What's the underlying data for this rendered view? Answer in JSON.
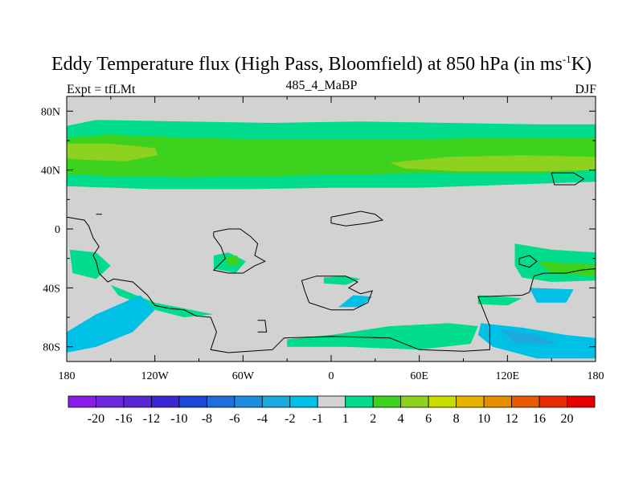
{
  "chart_data": {
    "type": "heatmap",
    "title": {
      "main": "Eddy Temperature flux (High Pass, Bloomfield) at 850 hPa (in ms",
      "superscript": "-1",
      "suffix": "K)"
    },
    "left_label": "Expt = tfLMt",
    "center_label": "485_4_MaBP",
    "right_label": "DJF",
    "x_ticks": [
      "180",
      "120W",
      "60W",
      "0",
      "60E",
      "120E",
      "180"
    ],
    "x_tick_values": [
      -180,
      -120,
      -60,
      0,
      60,
      120,
      180
    ],
    "y_ticks": [
      "80N",
      "40N",
      "0",
      "40S",
      "80S"
    ],
    "y_tick_values": [
      80,
      40,
      0,
      -40,
      -80
    ],
    "xlim": [
      -180,
      180
    ],
    "ylim": [
      -90,
      90
    ],
    "colorbar": {
      "labels": [
        "-20",
        "-16",
        "-12",
        "-10",
        "-8",
        "-6",
        "-4",
        "-2",
        "-1",
        "1",
        "2",
        "4",
        "6",
        "8",
        "10",
        "12",
        "16",
        "20"
      ],
      "colors": [
        "#8a1ee6",
        "#6e28dc",
        "#5a28d2",
        "#3c28d2",
        "#1e46d7",
        "#1e6edc",
        "#1e8cdc",
        "#1ea8e0",
        "#00c0e6",
        "#d2d2d2",
        "#00dc8c",
        "#3cd21e",
        "#8cd21e",
        "#c8dc00",
        "#e6b400",
        "#e68c00",
        "#e65a00",
        "#e62d00",
        "#e60000"
      ]
    },
    "regions": [
      {
        "value": 1.5,
        "polygon": [
          [
            -180,
            70
          ],
          [
            -160,
            74
          ],
          [
            -100,
            73
          ],
          [
            -40,
            72
          ],
          [
            20,
            73
          ],
          [
            80,
            72
          ],
          [
            140,
            71
          ],
          [
            180,
            71
          ],
          [
            180,
            32
          ],
          [
            120,
            30
          ],
          [
            60,
            28
          ],
          [
            0,
            28
          ],
          [
            -60,
            27
          ],
          [
            -120,
            27
          ],
          [
            -180,
            29
          ]
        ]
      },
      {
        "value": 3,
        "polygon": [
          [
            -180,
            62
          ],
          [
            -150,
            64
          ],
          [
            -100,
            62
          ],
          [
            -50,
            61
          ],
          [
            0,
            61
          ],
          [
            60,
            61
          ],
          [
            120,
            62
          ],
          [
            180,
            62
          ],
          [
            180,
            40
          ],
          [
            140,
            38
          ],
          [
            80,
            38
          ],
          [
            20,
            37
          ],
          [
            -40,
            36
          ],
          [
            -100,
            35
          ],
          [
            -150,
            36
          ],
          [
            -180,
            37
          ]
        ]
      },
      {
        "value": 5,
        "polygon": [
          [
            -180,
            58
          ],
          [
            -150,
            58
          ],
          [
            -120,
            55
          ],
          [
            -118,
            50
          ],
          [
            -140,
            46
          ],
          [
            -170,
            47
          ],
          [
            -180,
            48
          ]
        ]
      },
      {
        "value": 5,
        "polygon": [
          [
            40,
            45
          ],
          [
            80,
            49
          ],
          [
            130,
            50
          ],
          [
            180,
            49
          ],
          [
            180,
            40
          ],
          [
            140,
            39
          ],
          [
            90,
            39
          ],
          [
            50,
            41
          ]
        ]
      },
      {
        "value": 1.5,
        "polygon": [
          [
            -178,
            -14
          ],
          [
            -160,
            -16
          ],
          [
            -150,
            -25
          ],
          [
            -160,
            -34
          ],
          [
            -176,
            -30
          ]
        ]
      },
      {
        "value": 1.5,
        "polygon": [
          [
            -150,
            -38
          ],
          [
            -120,
            -50
          ],
          [
            -100,
            -54
          ],
          [
            -80,
            -58
          ],
          [
            -100,
            -60
          ],
          [
            -120,
            -55
          ],
          [
            -145,
            -45
          ]
        ]
      },
      {
        "value": 1.5,
        "polygon": [
          [
            -80,
            -18
          ],
          [
            -70,
            -16
          ],
          [
            -58,
            -22
          ],
          [
            -65,
            -30
          ],
          [
            -80,
            -27
          ]
        ]
      },
      {
        "value": 3,
        "polygon": [
          [
            -72,
            -19
          ],
          [
            -64,
            -18
          ],
          [
            -62,
            -24
          ],
          [
            -70,
            -25
          ]
        ]
      },
      {
        "value": 1.5,
        "polygon": [
          [
            -5,
            -33
          ],
          [
            10,
            -32
          ],
          [
            20,
            -34
          ],
          [
            10,
            -38
          ],
          [
            -5,
            -37
          ]
        ]
      },
      {
        "value": 1.5,
        "polygon": [
          [
            -30,
            -75
          ],
          [
            0,
            -72
          ],
          [
            40,
            -66
          ],
          [
            80,
            -64
          ],
          [
            100,
            -66
          ],
          [
            95,
            -78
          ],
          [
            60,
            -82
          ],
          [
            10,
            -80
          ],
          [
            -30,
            -80
          ]
        ]
      },
      {
        "value": 1.5,
        "polygon": [
          [
            125,
            -10
          ],
          [
            150,
            -14
          ],
          [
            180,
            -16
          ],
          [
            180,
            -35
          ],
          [
            150,
            -36
          ],
          [
            130,
            -33
          ],
          [
            125,
            -25
          ]
        ]
      },
      {
        "value": 3,
        "polygon": [
          [
            140,
            -22
          ],
          [
            180,
            -24
          ],
          [
            180,
            -32
          ],
          [
            150,
            -30
          ]
        ]
      },
      {
        "value": 1.5,
        "polygon": [
          [
            100,
            -45
          ],
          [
            130,
            -47
          ],
          [
            120,
            -52
          ],
          [
            100,
            -51
          ]
        ]
      },
      {
        "value": -1.5,
        "polygon": [
          [
            -180,
            -70
          ],
          [
            -160,
            -58
          ],
          [
            -130,
            -45
          ],
          [
            -120,
            -55
          ],
          [
            -135,
            -70
          ],
          [
            -160,
            -80
          ],
          [
            -180,
            -84
          ]
        ]
      },
      {
        "value": -1.5,
        "polygon": [
          [
            15,
            -45
          ],
          [
            28,
            -46
          ],
          [
            20,
            -53
          ],
          [
            5,
            -53
          ]
        ]
      },
      {
        "value": -1.5,
        "polygon": [
          [
            135,
            -40
          ],
          [
            165,
            -41
          ],
          [
            160,
            -50
          ],
          [
            140,
            -50
          ]
        ]
      },
      {
        "value": -1.5,
        "polygon": [
          [
            102,
            -64
          ],
          [
            130,
            -67
          ],
          [
            160,
            -72
          ],
          [
            180,
            -74
          ],
          [
            180,
            -88
          ],
          [
            140,
            -88
          ],
          [
            110,
            -80
          ],
          [
            100,
            -72
          ]
        ]
      },
      {
        "value": -3,
        "polygon": [
          [
            115,
            -68
          ],
          [
            140,
            -72
          ],
          [
            155,
            -78
          ],
          [
            125,
            -78
          ]
        ]
      }
    ],
    "coastlines": [
      [
        [
          -180,
          8
        ],
        [
          -168,
          6
        ],
        [
          -165,
          2
        ],
        [
          -162,
          -6
        ],
        [
          -158,
          -12
        ],
        [
          -162,
          -18
        ],
        [
          -160,
          -22
        ],
        [
          -158,
          -30
        ],
        [
          -152,
          -36
        ],
        [
          -148,
          -34
        ],
        [
          -135,
          -36
        ],
        [
          -125,
          -45
        ],
        [
          -120,
          -52
        ],
        [
          -110,
          -54
        ],
        [
          -100,
          -55
        ],
        [
          -92,
          -59
        ],
        [
          -82,
          -60
        ],
        [
          -78,
          -70
        ],
        [
          -82,
          -82
        ],
        [
          -70,
          -84
        ],
        [
          -40,
          -82
        ],
        [
          -32,
          -74
        ],
        [
          0,
          -73
        ],
        [
          40,
          -74
        ],
        [
          60,
          -82
        ],
        [
          90,
          -83
        ],
        [
          108,
          -82
        ],
        [
          108,
          -66
        ],
        [
          100,
          -46
        ],
        [
          130,
          -45
        ],
        [
          135,
          -43
        ],
        [
          138,
          -32
        ],
        [
          145,
          -30
        ],
        [
          160,
          -30
        ],
        [
          170,
          -28
        ],
        [
          180,
          -27
        ]
      ],
      [
        [
          -80,
          -2
        ],
        [
          -70,
          0
        ],
        [
          -62,
          0
        ],
        [
          -55,
          -5
        ],
        [
          -50,
          -10
        ],
        [
          -52,
          -18
        ],
        [
          -45,
          -22
        ],
        [
          -52,
          -25
        ],
        [
          -60,
          -30
        ],
        [
          -70,
          -30
        ],
        [
          -80,
          -28
        ],
        [
          -72,
          -20
        ],
        [
          -75,
          -12
        ],
        [
          -80,
          -5
        ],
        [
          -80,
          -2
        ]
      ],
      [
        [
          -20,
          -35
        ],
        [
          -10,
          -32
        ],
        [
          10,
          -32
        ],
        [
          18,
          -36
        ],
        [
          12,
          -40
        ],
        [
          20,
          -44
        ],
        [
          28,
          -42
        ],
        [
          25,
          -50
        ],
        [
          15,
          -55
        ],
        [
          0,
          -55
        ],
        [
          -15,
          -50
        ],
        [
          -18,
          -42
        ],
        [
          -20,
          -35
        ]
      ],
      [
        [
          0,
          8
        ],
        [
          10,
          10
        ],
        [
          20,
          12
        ],
        [
          30,
          10
        ],
        [
          35,
          6
        ],
        [
          25,
          4
        ],
        [
          10,
          2
        ],
        [
          0,
          4
        ],
        [
          0,
          8
        ]
      ],
      [
        [
          128,
          -20
        ],
        [
          135,
          -18
        ],
        [
          140,
          -22
        ],
        [
          135,
          -26
        ],
        [
          128,
          -24
        ],
        [
          128,
          -20
        ]
      ],
      [
        [
          150,
          38
        ],
        [
          165,
          38
        ],
        [
          172,
          34
        ],
        [
          166,
          30
        ],
        [
          152,
          30
        ],
        [
          150,
          38
        ]
      ],
      [
        [
          -160,
          10
        ],
        [
          -156,
          10
        ]
      ],
      [
        [
          -50,
          -62
        ],
        [
          -45,
          -62
        ],
        [
          -44,
          -70
        ],
        [
          -50,
          -70
        ]
      ]
    ]
  }
}
